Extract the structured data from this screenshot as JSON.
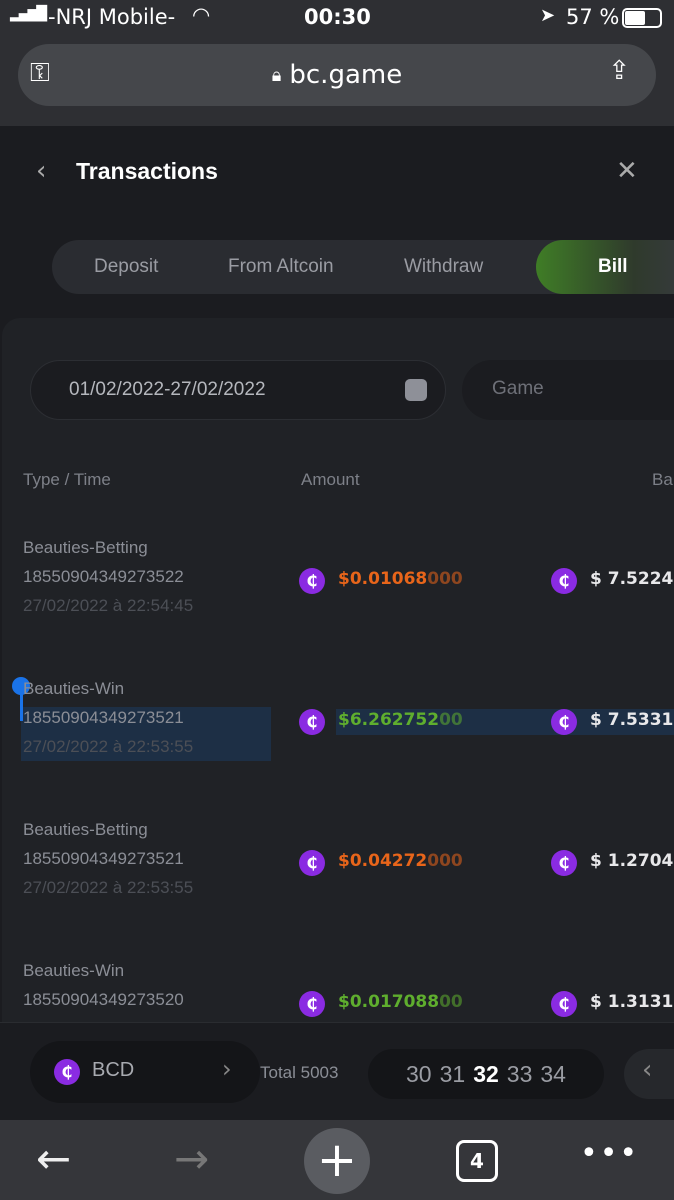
{
  "status_bar": {
    "carrier": "-NRJ Mobile-",
    "time": "00:30",
    "battery": "57 %"
  },
  "browser": {
    "url": "bc.game",
    "tab_count": "4"
  },
  "header": {
    "title": "Transactions"
  },
  "tabs": [
    {
      "label": "Deposit"
    },
    {
      "label": "From Altcoin"
    },
    {
      "label": "Withdraw"
    },
    {
      "label": "Bill",
      "active": true
    }
  ],
  "filters": {
    "date_range": "01/02/2022-27/02/2022",
    "game_placeholder": "Game"
  },
  "columns": {
    "type_time": "Type / Time",
    "amount": "Amount",
    "balance": "Ba"
  },
  "rows": [
    {
      "type": "Beauties-Betting",
      "id": "18550904349273522",
      "time": "27/02/2022 à 22:54:45",
      "amount_main": "$0.01068",
      "amount_tail": "000",
      "amount_color": "#e8651a",
      "balance": "$ 7.5224"
    },
    {
      "type": "Beauties-Win",
      "id": "18550904349273521",
      "time": "27/02/2022 à 22:53:55",
      "amount_main": "$6.262752",
      "amount_tail": "00",
      "amount_color": "#5fae2e",
      "balance": "$ 7.5331",
      "selected": true
    },
    {
      "type": "Beauties-Betting",
      "id": "18550904349273521",
      "time": "27/02/2022 à 22:53:55",
      "amount_main": "$0.04272",
      "amount_tail": "000",
      "amount_color": "#e8651a",
      "balance": "$ 1.2704"
    },
    {
      "type": "Beauties-Win",
      "id": "18550904349273520",
      "time": "",
      "amount_main": "$0.017088",
      "amount_tail": "00",
      "amount_color": "#5fae2e",
      "balance": "$ 1.3131"
    }
  ],
  "footer": {
    "currency": "BCD",
    "total": "Total 5003",
    "pages": [
      "30",
      "31",
      "32",
      "33",
      "34"
    ],
    "current_page": "32"
  },
  "colors": {
    "accent_green": "#5fae2e",
    "coin_purple": "#8a2be2",
    "loss_orange": "#e8651a"
  }
}
